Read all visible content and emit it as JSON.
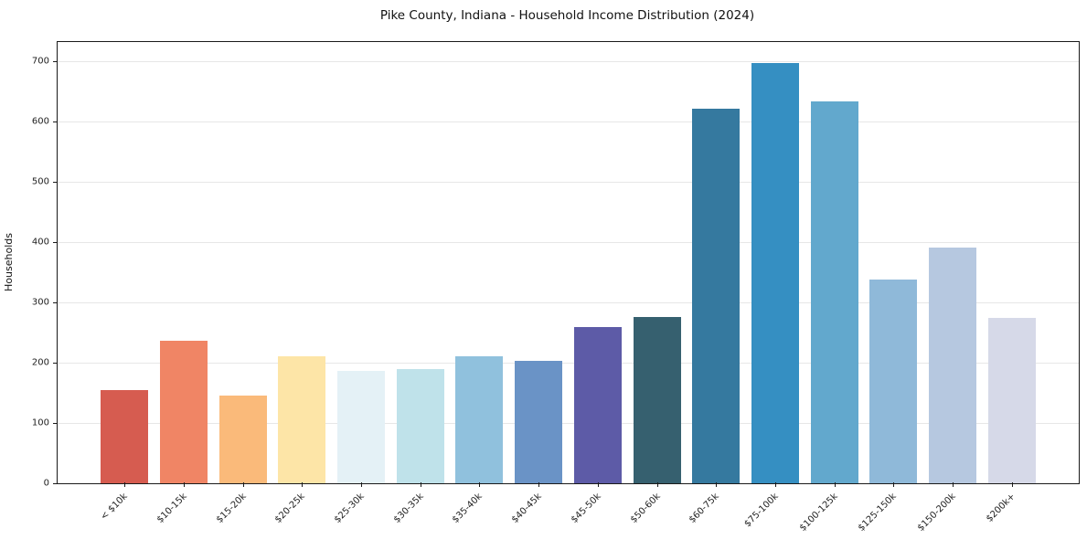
{
  "chart_data": {
    "type": "bar",
    "title": "Pike County, Indiana - Household Income Distribution (2024)",
    "xlabel": "",
    "ylabel": "Households",
    "categories": [
      "< $10k",
      "$10-15k",
      "$15-20k",
      "$20-25k",
      "$25-30k",
      "$30-35k",
      "$35-40k",
      "$40-45k",
      "$45-50k",
      "$50-60k",
      "$60-75k",
      "$75-100k",
      "$100-125k",
      "$125-150k",
      "$150-200k",
      "$200k+"
    ],
    "values": [
      155,
      236,
      145,
      211,
      187,
      189,
      210,
      203,
      259,
      276,
      621,
      697,
      633,
      338,
      391,
      274
    ],
    "bar_colors": [
      "#d65c50",
      "#f08565",
      "#faba7a",
      "#fde5a7",
      "#e4f1f6",
      "#bfe2ea",
      "#90c1dd",
      "#6a93c6",
      "#5d5ba7",
      "#36606f",
      "#35799f",
      "#358fc2",
      "#62a8cd",
      "#8fb9d9",
      "#b6c8e0",
      "#d6d9e8"
    ],
    "ylim": [
      0,
      732
    ],
    "yticks": [
      0,
      100,
      200,
      300,
      400,
      500,
      600,
      700
    ],
    "grid": "horizontal",
    "legend": "none",
    "x_tick_rotation_deg": 45
  },
  "colors": {
    "background": "#ffffff",
    "spine": "#1a1a1a",
    "gridline": "#e7e7e7",
    "text": "#111111"
  }
}
